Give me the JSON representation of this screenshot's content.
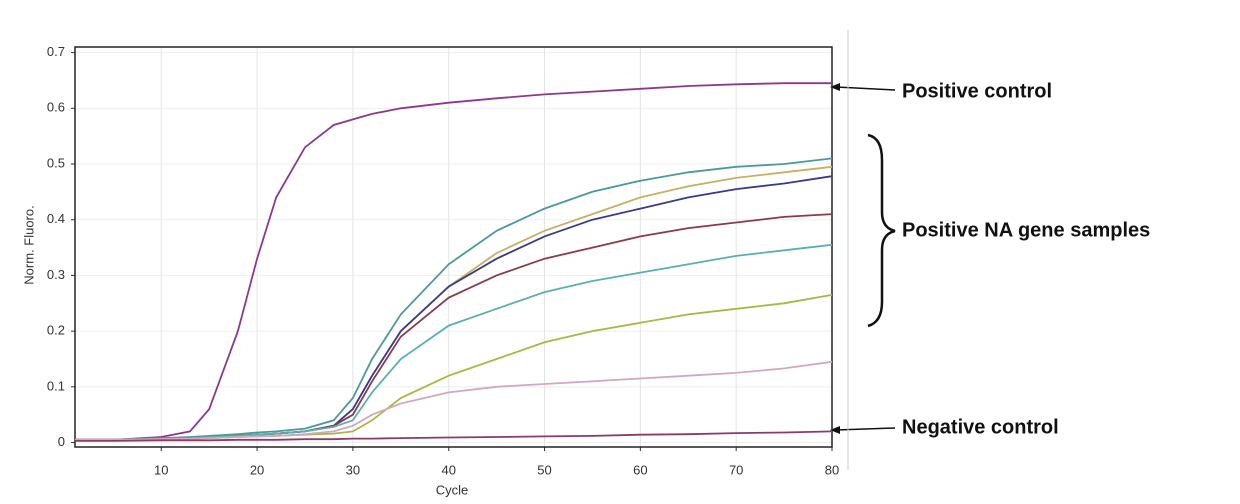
{
  "chart_data": {
    "type": "line",
    "y_label": "Norm. Fluoro.",
    "x_label": "Cycle",
    "annotations": [
      "Positive control",
      "Positive NA gene samples",
      "Negative control"
    ],
    "x": [
      1,
      5,
      10,
      13,
      15,
      18,
      20,
      22,
      25,
      28,
      30,
      32,
      35,
      40,
      45,
      50,
      55,
      60,
      65,
      70,
      75,
      80
    ],
    "xlim": [
      1,
      80
    ],
    "xticks": [
      10,
      20,
      30,
      40,
      50,
      60,
      70,
      80
    ],
    "ylim": [
      -0.008,
      0.71
    ],
    "yticks": [
      0,
      0.1,
      0.2,
      0.3,
      0.4,
      0.5,
      0.6,
      0.7
    ],
    "grid": true,
    "series": [
      {
        "color": "#8b3a8b",
        "values": [
          0.005,
          0.005,
          0.01,
          0.02,
          0.06,
          0.2,
          0.33,
          0.44,
          0.53,
          0.57,
          0.58,
          0.59,
          0.6,
          0.61,
          0.618,
          0.625,
          0.63,
          0.635,
          0.64,
          0.643,
          0.645,
          0.645
        ]
      },
      {
        "color": "#4a9a9a",
        "values": [
          0.005,
          0.005,
          0.008,
          0.01,
          0.012,
          0.015,
          0.018,
          0.02,
          0.025,
          0.04,
          0.08,
          0.15,
          0.23,
          0.32,
          0.38,
          0.42,
          0.45,
          0.47,
          0.485,
          0.495,
          0.5,
          0.51
        ]
      },
      {
        "color": "#c8b060",
        "values": [
          0.005,
          0.005,
          0.007,
          0.008,
          0.01,
          0.012,
          0.014,
          0.016,
          0.02,
          0.03,
          0.06,
          0.12,
          0.2,
          0.28,
          0.34,
          0.38,
          0.41,
          0.44,
          0.46,
          0.475,
          0.485,
          0.495
        ]
      },
      {
        "color": "#3a3a8a",
        "values": [
          0.005,
          0.005,
          0.007,
          0.008,
          0.01,
          0.012,
          0.014,
          0.016,
          0.02,
          0.03,
          0.06,
          0.12,
          0.2,
          0.28,
          0.33,
          0.37,
          0.4,
          0.42,
          0.44,
          0.455,
          0.465,
          0.478
        ]
      },
      {
        "color": "#8b3a4a",
        "values": [
          0.005,
          0.005,
          0.007,
          0.008,
          0.01,
          0.012,
          0.014,
          0.016,
          0.02,
          0.03,
          0.05,
          0.11,
          0.19,
          0.26,
          0.3,
          0.33,
          0.35,
          0.37,
          0.385,
          0.395,
          0.405,
          0.41
        ]
      },
      {
        "color": "#5ab0b0",
        "values": [
          0.005,
          0.005,
          0.007,
          0.008,
          0.01,
          0.012,
          0.014,
          0.016,
          0.02,
          0.028,
          0.04,
          0.09,
          0.15,
          0.21,
          0.24,
          0.27,
          0.29,
          0.305,
          0.32,
          0.335,
          0.345,
          0.355
        ]
      },
      {
        "color": "#a8b840",
        "values": [
          0.005,
          0.005,
          0.006,
          0.007,
          0.008,
          0.01,
          0.011,
          0.012,
          0.014,
          0.016,
          0.02,
          0.04,
          0.08,
          0.12,
          0.15,
          0.18,
          0.2,
          0.215,
          0.23,
          0.24,
          0.25,
          0.265
        ]
      },
      {
        "color": "#d0a8c0",
        "values": [
          0.005,
          0.005,
          0.006,
          0.007,
          0.008,
          0.01,
          0.011,
          0.012,
          0.015,
          0.02,
          0.03,
          0.05,
          0.07,
          0.09,
          0.1,
          0.105,
          0.11,
          0.115,
          0.12,
          0.125,
          0.133,
          0.145
        ]
      },
      {
        "color": "#8b3a6a",
        "values": [
          0.003,
          0.003,
          0.004,
          0.004,
          0.004,
          0.005,
          0.005,
          0.005,
          0.006,
          0.006,
          0.007,
          0.007,
          0.008,
          0.009,
          0.01,
          0.011,
          0.012,
          0.014,
          0.015,
          0.017,
          0.018,
          0.02
        ]
      }
    ]
  }
}
